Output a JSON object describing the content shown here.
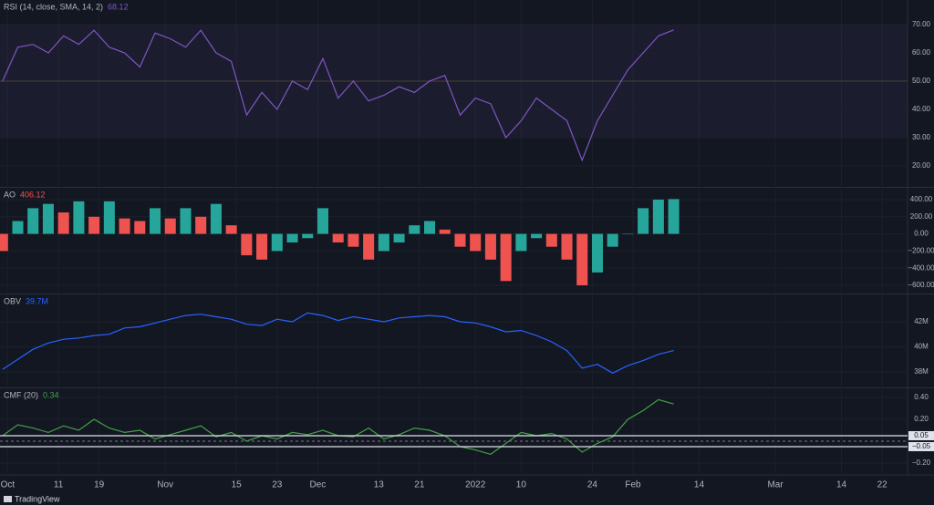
{
  "x_axis": {
    "x": [
      -1,
      2,
      5,
      8,
      11,
      14,
      17,
      20,
      23,
      26,
      29,
      32,
      35,
      38,
      41,
      44,
      47,
      50,
      53,
      56,
      59,
      62,
      65,
      68,
      71,
      74,
      77,
      80,
      83,
      86,
      89,
      92,
      95,
      98,
      101,
      104,
      107,
      110,
      113,
      116,
      119,
      122,
      125,
      128,
      131
    ],
    "xlim": [
      -1.5,
      177
    ],
    "xticks": [
      {
        "value": 0,
        "label": "Oct"
      },
      {
        "value": 10,
        "label": "11"
      },
      {
        "value": 18,
        "label": "19"
      },
      {
        "value": 31,
        "label": "Nov"
      },
      {
        "value": 45,
        "label": "15"
      },
      {
        "value": 53,
        "label": "23"
      },
      {
        "value": 61,
        "label": "Dec"
      },
      {
        "value": 73,
        "label": "13"
      },
      {
        "value": 81,
        "label": "21"
      },
      {
        "value": 92,
        "label": "2022"
      },
      {
        "value": 101,
        "label": "10"
      },
      {
        "value": 115,
        "label": "24"
      },
      {
        "value": 123,
        "label": "Feb"
      },
      {
        "value": 136,
        "label": "14"
      },
      {
        "value": 151,
        "label": "Mar"
      },
      {
        "value": 164,
        "label": "14"
      },
      {
        "value": 172,
        "label": "22"
      }
    ],
    "grid": true
  },
  "chart_data": [
    {
      "type": "line",
      "title": "RSI (14, close, SMA, 14, 2)",
      "last_value": 68.12,
      "color": "#7e57c2",
      "values": [
        50,
        62,
        63,
        60,
        66,
        63,
        68,
        62,
        60,
        55,
        67,
        65,
        62,
        68,
        60,
        57,
        38,
        46,
        40,
        50,
        47,
        58,
        44,
        50,
        43,
        45,
        48,
        46,
        50,
        52,
        38,
        44,
        42,
        30,
        36,
        44,
        40,
        36,
        22,
        36,
        45,
        54,
        60,
        66,
        68.12
      ],
      "ylim": [
        12.6,
        78.7
      ],
      "yticks": [
        {
          "value": 20,
          "label": "20.00"
        },
        {
          "value": 30,
          "label": "30.00"
        },
        {
          "value": 40,
          "label": "40.00"
        },
        {
          "value": 50,
          "label": "50.00"
        },
        {
          "value": 60,
          "label": "60.00"
        },
        {
          "value": 70,
          "label": "70.00"
        }
      ],
      "band": [
        30,
        70
      ],
      "band_color": "#7e57c2",
      "midline": 50,
      "midline_color": "#c9a24a"
    },
    {
      "type": "histogram",
      "title": "AO",
      "last_value": 406.12,
      "up_color": "#26a69a",
      "down_color": "#ef5350",
      "values": [
        -200,
        150,
        300,
        350,
        250,
        380,
        200,
        380,
        180,
        150,
        300,
        180,
        300,
        200,
        350,
        100,
        -250,
        -300,
        -200,
        -100,
        -50,
        300,
        -100,
        -150,
        -300,
        -200,
        -100,
        100,
        150,
        50,
        -150,
        -200,
        -300,
        -550,
        -200,
        -50,
        -150,
        -300,
        -600,
        -450,
        -150,
        0,
        300,
        400,
        406.12
      ],
      "ylim": [
        -696,
        538
      ],
      "yticks": [
        {
          "value": 400,
          "label": "400.00"
        },
        {
          "value": 200,
          "label": "200.00"
        },
        {
          "value": 0,
          "label": "0.00"
        },
        {
          "value": -200,
          "label": "−200.00"
        },
        {
          "value": -400,
          "label": "−400.00"
        },
        {
          "value": -600,
          "label": "−600.00"
        }
      ]
    },
    {
      "type": "line",
      "title": "OBV",
      "last_value": {
        "value": 39.7,
        "label": "39.7M"
      },
      "color": "#2962ff",
      "values": [
        38.2,
        39.0,
        39.8,
        40.3,
        40.6,
        40.7,
        40.9,
        41.0,
        41.5,
        41.6,
        41.9,
        42.2,
        42.5,
        42.6,
        42.4,
        42.2,
        41.8,
        41.7,
        42.2,
        42.0,
        42.7,
        42.5,
        42.1,
        42.4,
        42.2,
        42.0,
        42.3,
        42.4,
        42.5,
        42.4,
        42.0,
        41.9,
        41.6,
        41.2,
        41.3,
        40.9,
        40.4,
        39.7,
        38.3,
        38.6,
        37.9,
        38.5,
        38.9,
        39.4,
        39.7
      ],
      "ylim": [
        36.76,
        44.18
      ],
      "yticks": [
        {
          "value": 42,
          "label": "42M"
        },
        {
          "value": 40,
          "label": "40M"
        },
        {
          "value": 38,
          "label": "38M"
        }
      ]
    },
    {
      "type": "line",
      "title": "CMF (20)",
      "last_value": 0.34,
      "color": "#43a047",
      "values": [
        0.05,
        0.15,
        0.12,
        0.08,
        0.14,
        0.1,
        0.2,
        0.12,
        0.08,
        0.1,
        0.02,
        0.06,
        0.1,
        0.14,
        0.04,
        0.08,
        0.0,
        0.05,
        0.02,
        0.08,
        0.06,
        0.1,
        0.05,
        0.04,
        0.12,
        0.02,
        0.06,
        0.12,
        0.1,
        0.05,
        -0.05,
        -0.08,
        -0.12,
        -0.02,
        0.08,
        0.05,
        0.07,
        0.02,
        -0.1,
        -0.02,
        0.04,
        0.2,
        0.28,
        0.38,
        0.34
      ],
      "ylim": [
        -0.3,
        0.483
      ],
      "yticks": [
        {
          "value": 0.4,
          "label": "0.40"
        },
        {
          "value": 0.2,
          "label": "0.20"
        },
        {
          "value": -0.2,
          "label": "−0.20"
        }
      ],
      "zero_line": 0,
      "levels": [
        {
          "value": 0.05,
          "label": "0.05"
        },
        {
          "value": -0.05,
          "label": "−0.05"
        }
      ]
    }
  ],
  "footer": {
    "brand": "TradingView"
  }
}
